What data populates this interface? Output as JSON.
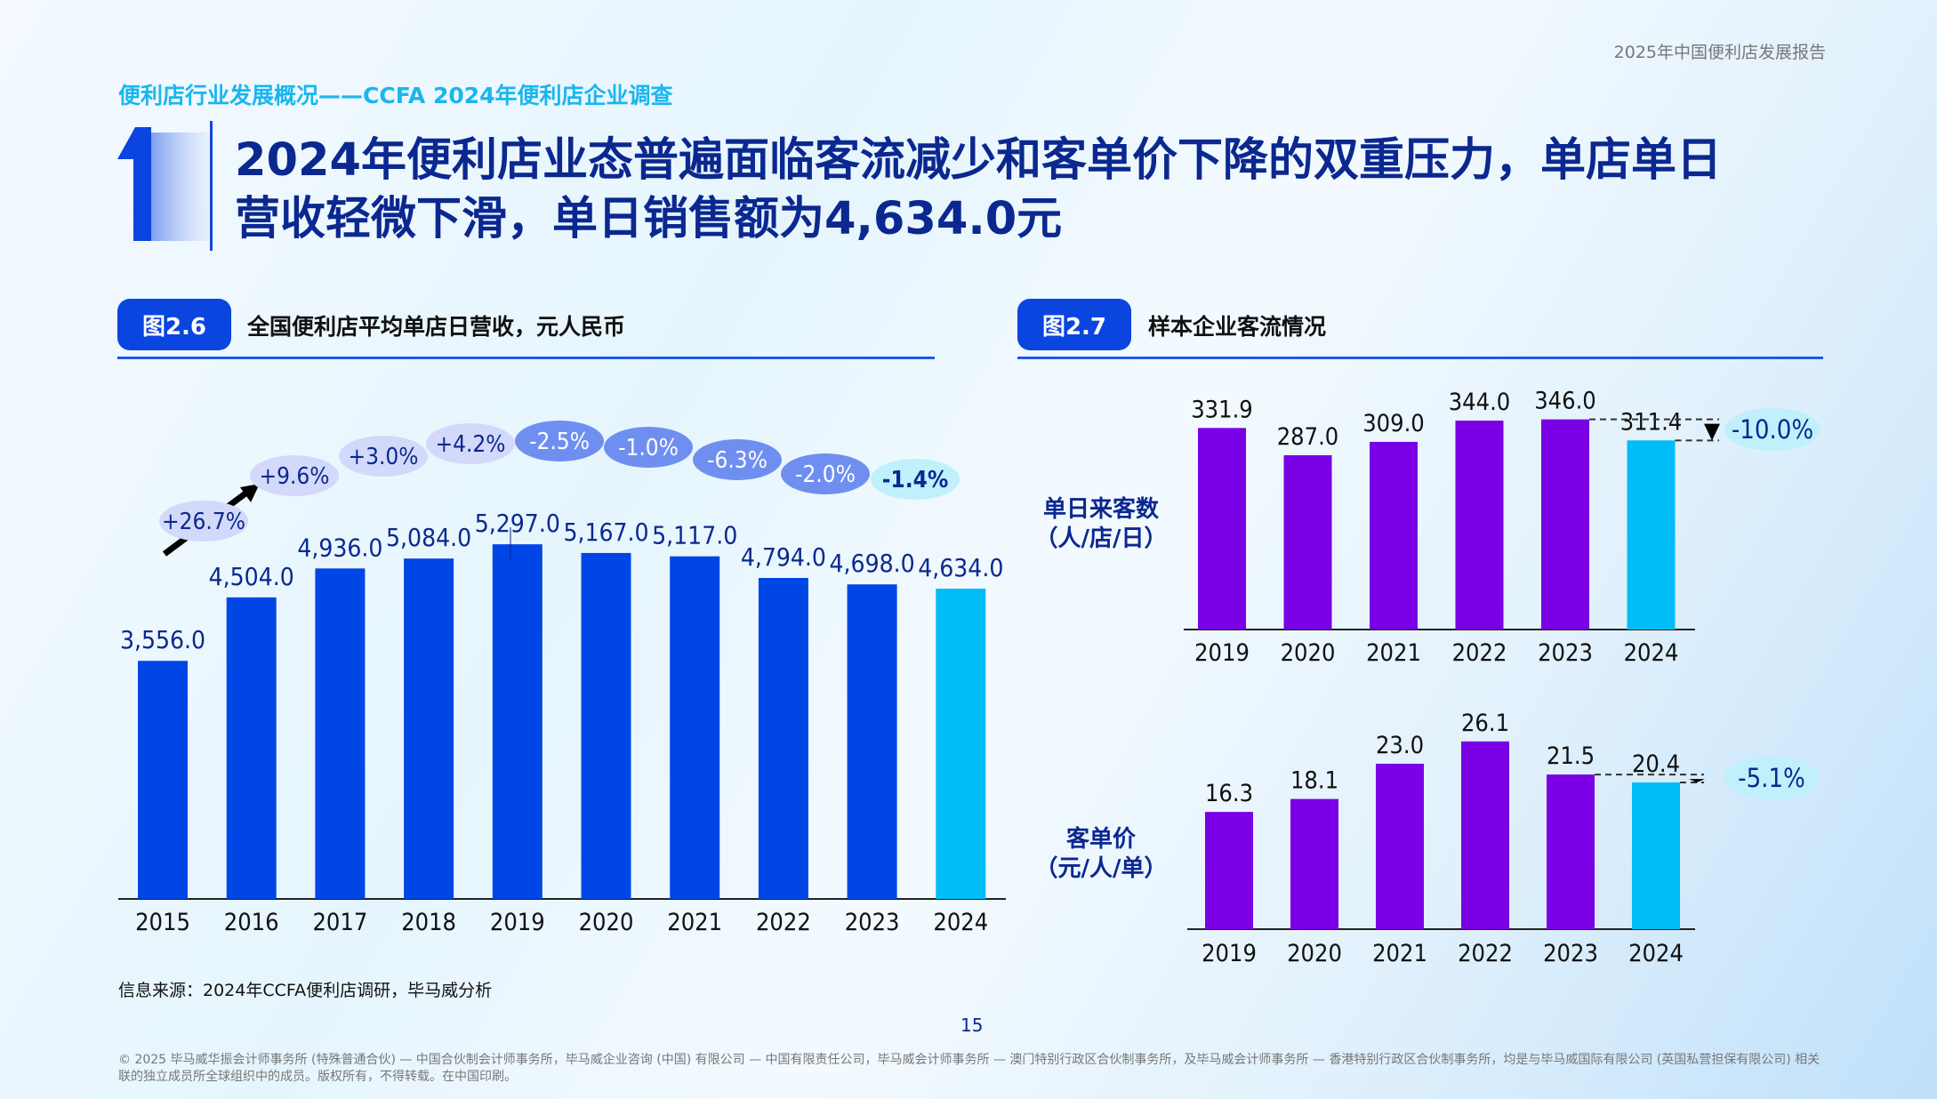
{
  "header": {
    "report": "2025年中国便利店发展报告",
    "section": "便利店行业发展概况——CCFA 2024年便利店企业调查",
    "section_number": "1",
    "title_line1": "2024年便利店业态普遍面临客流减少和客单价下降的双重压力，单店单日",
    "title_line2": "营收轻微下滑，单日销售额为4,634.0元"
  },
  "colors": {
    "bar_blue": "#0046e6",
    "bar_cyan": "#00bdf7",
    "bar_purple": "#7a00e6",
    "bubble_light": "#d3d9fa",
    "bubble_mid": "#6f8ff0",
    "bubble_cyan": "#c0f0fb"
  },
  "chart_data": [
    {
      "type": "bar",
      "badge": "图2.6",
      "title": "全国便利店平均单店日营收，元人民币",
      "categories": [
        "2015",
        "2016",
        "2017",
        "2018",
        "2019",
        "2020",
        "2021",
        "2022",
        "2023",
        "2024"
      ],
      "values": [
        3556.0,
        4504.0,
        4936.0,
        5084.0,
        5297.0,
        5167.0,
        5117.0,
        4794.0,
        4698.0,
        4634.0
      ],
      "value_labels": [
        "3,556.0",
        "4,504.0",
        "4,936.0",
        "5,084.0",
        "5,297.0",
        "5,167.0",
        "5,117.0",
        "4,794.0",
        "4,698.0",
        "4,634.0"
      ],
      "growth_labels": [
        "+26.7%",
        "+9.6%",
        "+3.0%",
        "+4.2%",
        "-2.5%",
        "-1.0%",
        "-6.3%",
        "-2.0%",
        "-1.4%"
      ],
      "ylim": [
        0,
        5500
      ]
    },
    {
      "type": "bar",
      "badge": "图2.7",
      "title": "样本企业客流情况",
      "panels": [
        {
          "ylabel_line1": "单日来客数",
          "ylabel_line2": "（人/店/日）",
          "categories": [
            "2019",
            "2020",
            "2021",
            "2022",
            "2023",
            "2024"
          ],
          "values": [
            331.9,
            287.0,
            309.0,
            344.0,
            346.0,
            311.4
          ],
          "value_labels": [
            "331.9",
            "287.0",
            "309.0",
            "344.0",
            "346.0",
            "311.4"
          ],
          "change": "-10.0%",
          "ylim": [
            0,
            350
          ]
        },
        {
          "ylabel_line1": "客单价",
          "ylabel_line2": "（元/人/单）",
          "categories": [
            "2019",
            "2020",
            "2021",
            "2022",
            "2023",
            "2024"
          ],
          "values": [
            16.3,
            18.1,
            23.0,
            26.1,
            21.5,
            20.4
          ],
          "value_labels": [
            "16.3",
            "18.1",
            "23.0",
            "26.1",
            "21.5",
            "20.4"
          ],
          "change": "-5.1%",
          "ylim": [
            0,
            27
          ]
        }
      ]
    }
  ],
  "source": "信息来源：2024年CCFA便利店调研，毕马威分析",
  "page_number": "15",
  "footer": "© 2025 毕马威华振会计师事务所 (特殊普通合伙) — 中国合伙制会计师事务所，毕马威企业咨询 (中国) 有限公司 — 中国有限责任公司，毕马威会计师事务所 — 澳门特别行政区合伙制事务所，及毕马威会计师事务所 — 香港特别行政区合伙制事务所，均是与毕马威国际有限公司 (英国私营担保有限公司) 相关联的独立成员所全球组织中的成员。版权所有，不得转载。在中国印刷。"
}
